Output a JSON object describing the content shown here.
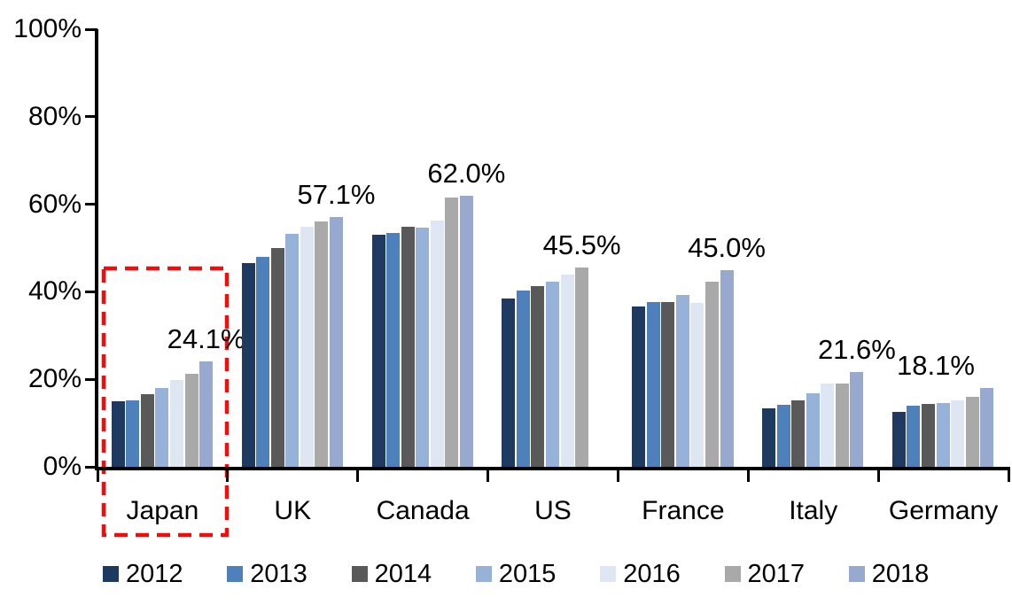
{
  "chart_data": {
    "type": "bar",
    "title": "",
    "categories": [
      "Japan",
      "UK",
      "Canada",
      "US",
      "France",
      "Italy",
      "Germany"
    ],
    "series": [
      {
        "name": "2012",
        "color": "#1F3A60",
        "values": [
          15.0,
          46.5,
          53.1,
          38.4,
          36.7,
          13.3,
          12.5
        ]
      },
      {
        "name": "2013",
        "color": "#4E80BC",
        "values": [
          15.1,
          47.9,
          53.5,
          40.2,
          37.7,
          14.1,
          14.0
        ]
      },
      {
        "name": "2014",
        "color": "#595959",
        "values": [
          16.7,
          49.9,
          54.9,
          41.2,
          37.7,
          15.2,
          14.3
        ]
      },
      {
        "name": "2015",
        "color": "#97B2D8",
        "values": [
          18.1,
          53.2,
          54.6,
          42.3,
          39.3,
          16.8,
          14.6
        ]
      },
      {
        "name": "2016",
        "color": "#DDE6F2",
        "values": [
          19.9,
          54.9,
          56.2,
          43.9,
          37.5,
          19.0,
          15.2
        ]
      },
      {
        "name": "2017",
        "color": "#A9A9A9",
        "values": [
          21.2,
          56.0,
          61.6,
          45.5,
          42.4,
          19.1,
          15.9
        ]
      },
      {
        "name": "2018",
        "color": "#98A9CF",
        "values": [
          24.1,
          57.1,
          62.0,
          null,
          45.0,
          21.6,
          18.1
        ]
      }
    ],
    "data_labels": [
      "24.1%",
      "57.1%",
      "62.0%",
      "45.5%",
      "45.0%",
      "21.6%",
      "18.1%"
    ],
    "y_axis": {
      "ticks": [
        "0%",
        "20%",
        "40%",
        "60%",
        "80%",
        "100%"
      ],
      "min": 0,
      "max": 100,
      "tick_step": 20
    },
    "x_axis": {
      "labels": [
        "Japan",
        "UK",
        "Canada",
        "US",
        "France",
        "Italy",
        "Germany"
      ]
    },
    "legend": {
      "position": "bottom",
      "entries": [
        "2012",
        "2013",
        "2014",
        "2015",
        "2016",
        "2017",
        "2018"
      ]
    },
    "grid": false,
    "axis_color": "#000000",
    "label_color": "#000000",
    "highlight": {
      "category": "Japan",
      "style": "dashed-box",
      "color": "#F20D0D"
    }
  }
}
